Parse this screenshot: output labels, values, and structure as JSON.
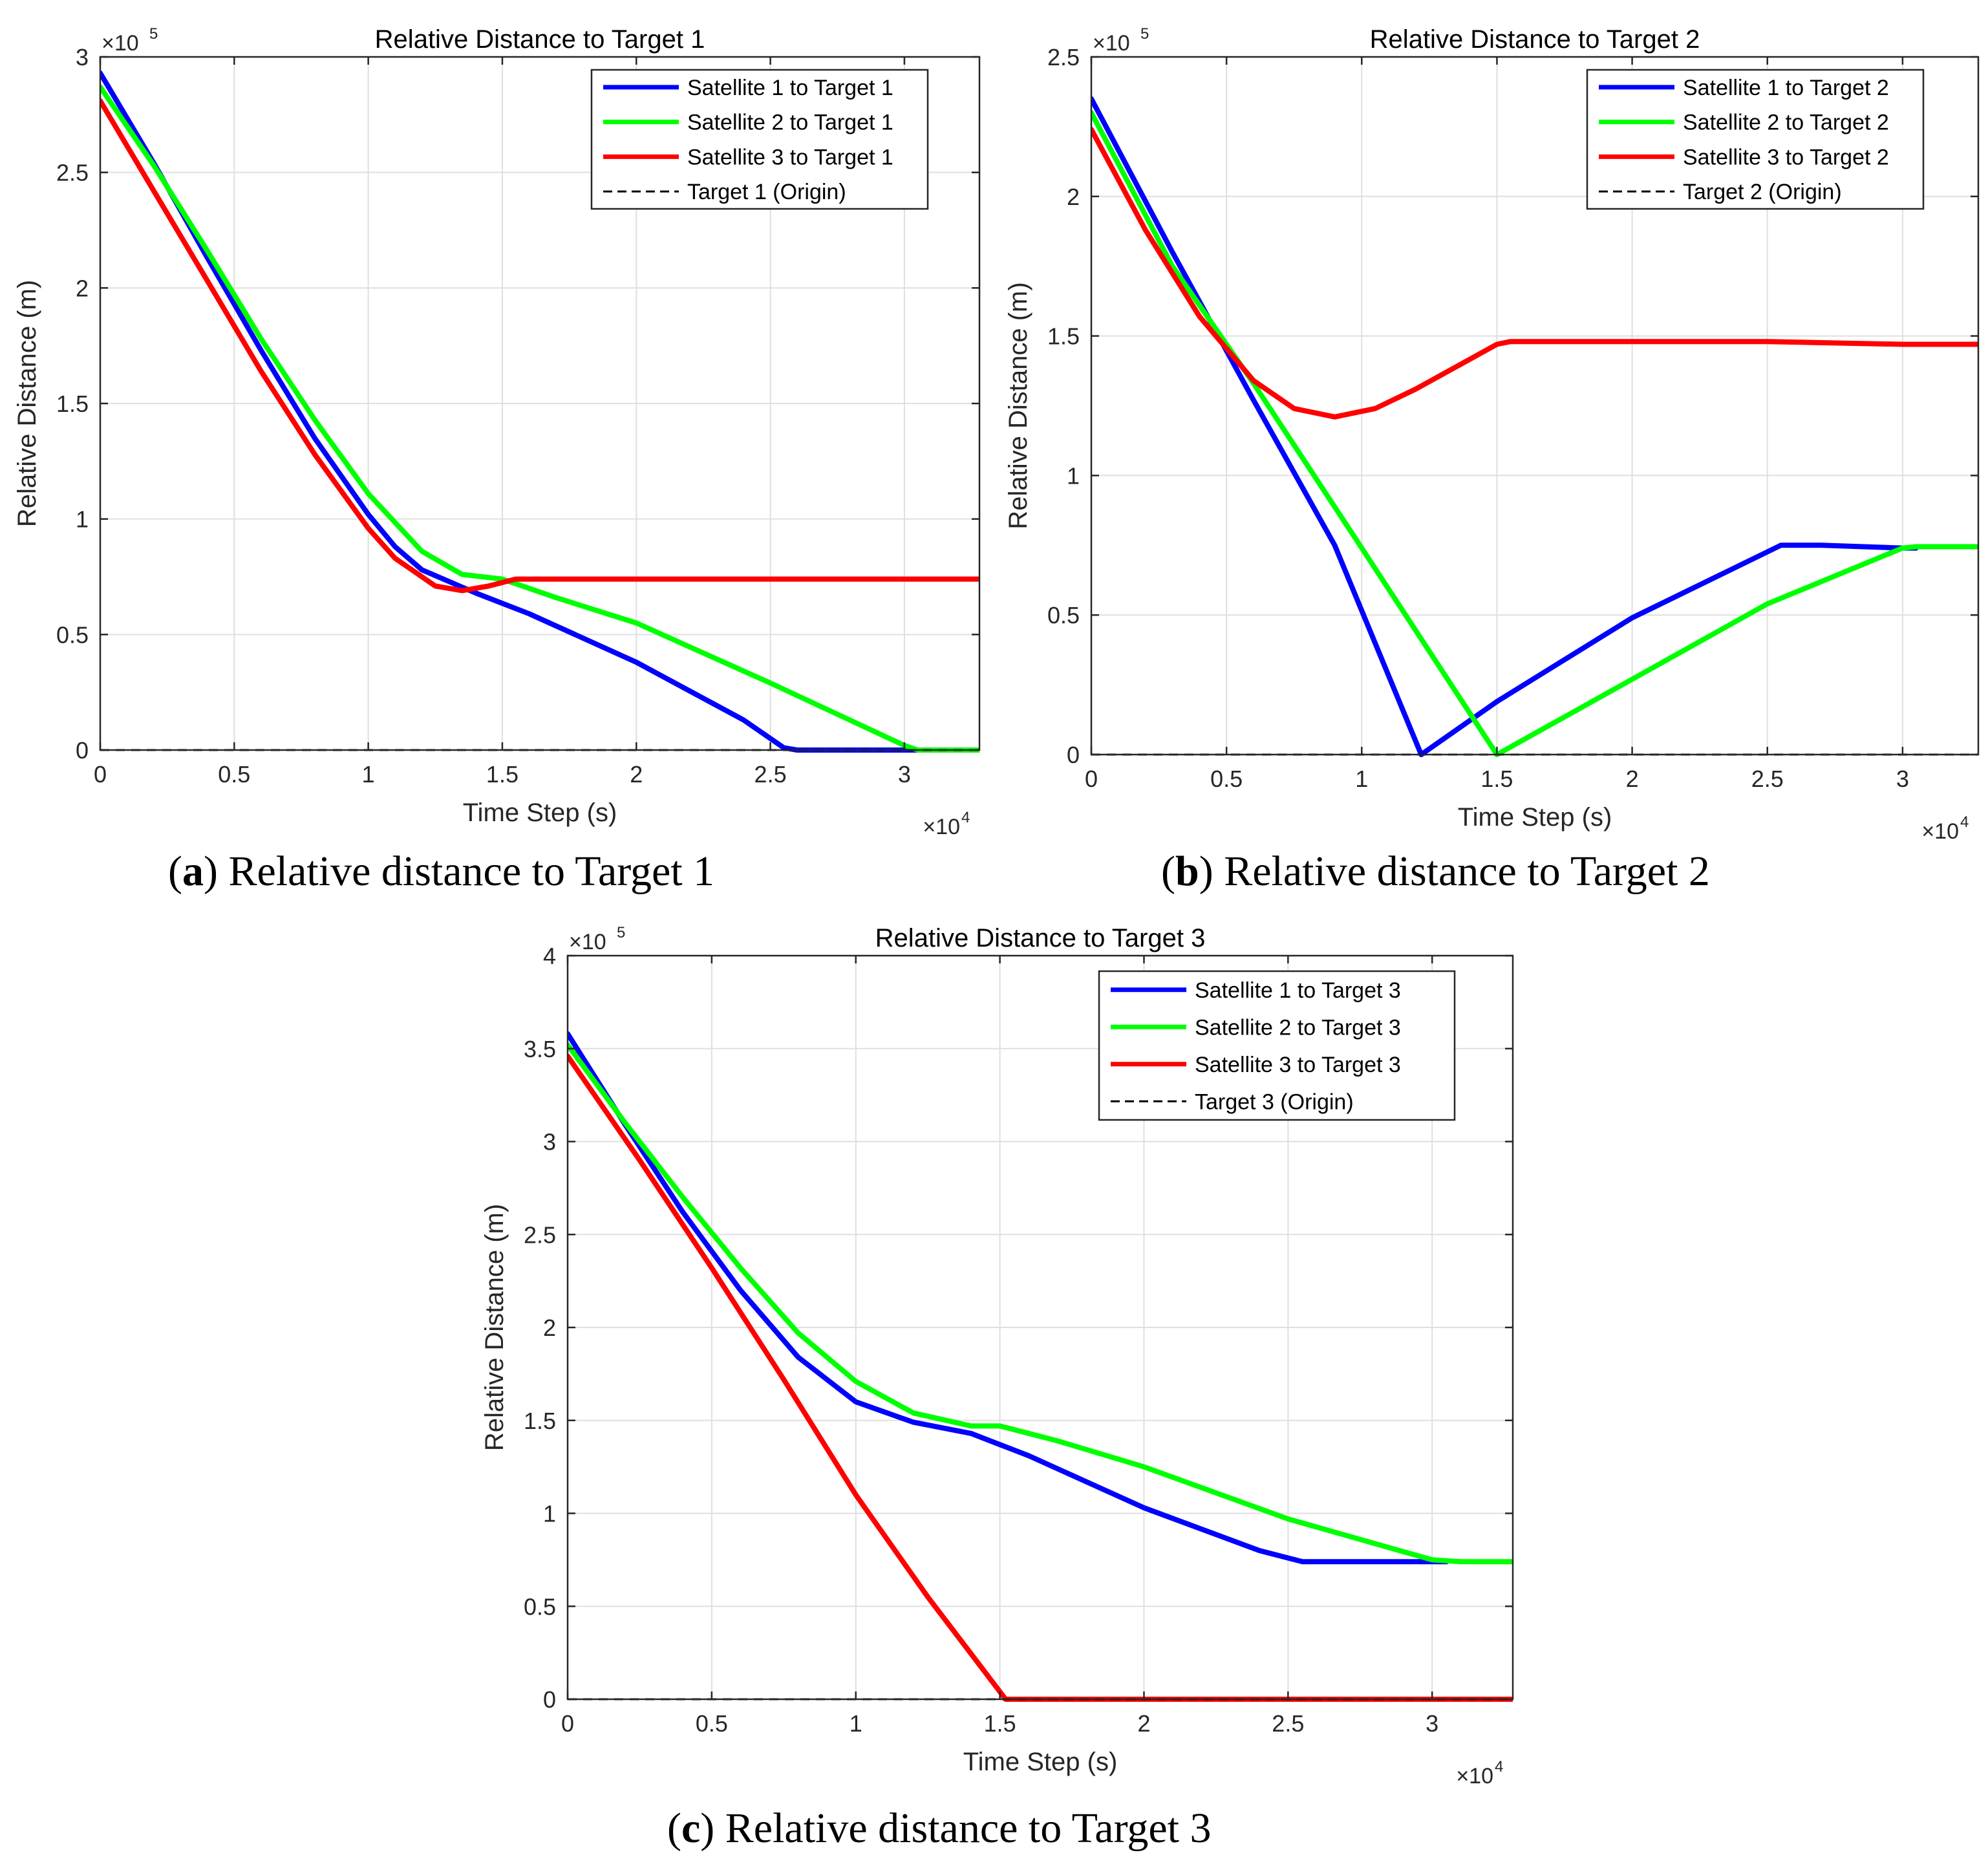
{
  "chart_data": [
    {
      "type": "line",
      "title": "Relative Distance to Target 1",
      "xlabel": "Time Step (s)",
      "ylabel": "Relative Distance (m)",
      "x_multiplier": "×10",
      "x_multiplier_exp": "4",
      "y_multiplier": "×10",
      "y_multiplier_exp": "5",
      "xlim": [
        0,
        3.28
      ],
      "ylim": [
        0,
        3
      ],
      "xticks": [
        0,
        0.5,
        1,
        1.5,
        2,
        2.5,
        3
      ],
      "xtick_labels": [
        "0",
        "0.5",
        "1",
        "1.5",
        "2",
        "2.5",
        "3"
      ],
      "yticks": [
        0,
        0.5,
        1,
        1.5,
        2,
        2.5,
        3
      ],
      "ytick_labels": [
        "0",
        "0.5",
        "1",
        "1.5",
        "2",
        "2.5",
        "3"
      ],
      "grid": true,
      "legend_position": "top-right",
      "caption": {
        "letter": "a",
        "text": " Relative distance to Target 1"
      },
      "series": [
        {
          "name": "Satellite 1 to Target 1",
          "color": "#0000ff",
          "style": "solid",
          "x": [
            0,
            0.2,
            0.4,
            0.6,
            0.8,
            1.0,
            1.1,
            1.2,
            1.4,
            1.6,
            2.0,
            2.4,
            2.55,
            2.6,
            3.28
          ],
          "y": [
            2.93,
            2.54,
            2.13,
            1.73,
            1.35,
            1.02,
            0.88,
            0.78,
            0.68,
            0.59,
            0.38,
            0.13,
            0.01,
            0,
            0
          ]
        },
        {
          "name": "Satellite 2 to Target 1",
          "color": "#00ff00",
          "style": "solid",
          "x": [
            0,
            0.2,
            0.4,
            0.6,
            0.8,
            1.0,
            1.2,
            1.35,
            1.5,
            1.7,
            2.0,
            2.5,
            3.0,
            3.05,
            3.28
          ],
          "y": [
            2.87,
            2.53,
            2.16,
            1.78,
            1.43,
            1.11,
            0.86,
            0.76,
            0.74,
            0.66,
            0.55,
            0.29,
            0.02,
            0,
            0
          ]
        },
        {
          "name": "Satellite 3 to Target 1",
          "color": "#ff0000",
          "style": "solid",
          "x": [
            0,
            0.2,
            0.4,
            0.6,
            0.8,
            1.0,
            1.1,
            1.25,
            1.35,
            1.45,
            1.55,
            1.7,
            2.0,
            2.5,
            3.0,
            3.28
          ],
          "y": [
            2.81,
            2.42,
            2.03,
            1.64,
            1.28,
            0.96,
            0.83,
            0.71,
            0.69,
            0.71,
            0.74,
            0.74,
            0.74,
            0.74,
            0.74,
            0.74
          ]
        },
        {
          "name": "Target 1 (Origin)",
          "color": "#000000",
          "style": "dashed",
          "x": [
            0,
            3.28
          ],
          "y": [
            0,
            0
          ]
        }
      ]
    },
    {
      "type": "line",
      "title": "Relative Distance to Target 2",
      "xlabel": "Time Step (s)",
      "ylabel": "Relative Distance (m)",
      "x_multiplier": "×10",
      "x_multiplier_exp": "4",
      "y_multiplier": "×10",
      "y_multiplier_exp": "5",
      "xlim": [
        0,
        3.28
      ],
      "ylim": [
        0,
        2.5
      ],
      "xticks": [
        0,
        0.5,
        1,
        1.5,
        2,
        2.5,
        3
      ],
      "xtick_labels": [
        "0",
        "0.5",
        "1",
        "1.5",
        "2",
        "2.5",
        "3"
      ],
      "yticks": [
        0,
        0.5,
        1,
        1.5,
        2,
        2.5
      ],
      "ytick_labels": [
        "0",
        "0.5",
        "1",
        "1.5",
        "2",
        "2.5"
      ],
      "grid": true,
      "legend_position": "top-right",
      "caption": {
        "letter": "b",
        "text": " Relative distance to Target 2"
      },
      "series": [
        {
          "name": "Satellite 1 to Target 2",
          "color": "#0000ff",
          "style": "solid",
          "x": [
            0,
            0.3,
            0.6,
            0.9,
            1.22,
            1.5,
            2.0,
            2.55,
            2.7,
            3.0,
            3.05
          ],
          "y": [
            2.35,
            1.8,
            1.27,
            0.75,
            0,
            0.19,
            0.49,
            0.75,
            0.75,
            0.74,
            0.74
          ]
        },
        {
          "name": "Satellite 2 to Target 2",
          "color": "#00ff00",
          "style": "solid",
          "x": [
            0,
            0.3,
            0.6,
            1.0,
            1.5,
            2.0,
            2.5,
            3.0,
            3.05,
            3.28
          ],
          "y": [
            2.3,
            1.75,
            1.33,
            0.74,
            0,
            0.27,
            0.54,
            0.74,
            0.745,
            0.745
          ]
        },
        {
          "name": "Satellite 3 to Target 2",
          "color": "#ff0000",
          "style": "solid",
          "x": [
            0,
            0.2,
            0.4,
            0.6,
            0.75,
            0.9,
            1.05,
            1.2,
            1.5,
            1.55,
            2.0,
            2.5,
            3.0,
            3.28
          ],
          "y": [
            2.24,
            1.88,
            1.57,
            1.34,
            1.24,
            1.21,
            1.24,
            1.31,
            1.47,
            1.48,
            1.48,
            1.48,
            1.47,
            1.47
          ]
        },
        {
          "name": "Target 2 (Origin)",
          "color": "#000000",
          "style": "dashed",
          "x": [
            0,
            3.28
          ],
          "y": [
            0,
            0
          ]
        }
      ]
    },
    {
      "type": "line",
      "title": "Relative Distance to Target 3",
      "xlabel": "Time Step (s)",
      "ylabel": "Relative Distance (m)",
      "x_multiplier": "×10",
      "x_multiplier_exp": "4",
      "y_multiplier": "×10",
      "y_multiplier_exp": "5",
      "xlim": [
        0,
        3.28
      ],
      "ylim": [
        0,
        4
      ],
      "xticks": [
        0,
        0.5,
        1,
        1.5,
        2,
        2.5,
        3
      ],
      "xtick_labels": [
        "0",
        "0.5",
        "1",
        "1.5",
        "2",
        "2.5",
        "3"
      ],
      "yticks": [
        0,
        0.5,
        1,
        1.5,
        2,
        2.5,
        3,
        3.5,
        4
      ],
      "ytick_labels": [
        "0",
        "0.5",
        "1",
        "1.5",
        "2",
        "2.5",
        "3",
        "3.5",
        "4"
      ],
      "grid": true,
      "legend_position": "top-right",
      "caption": {
        "letter": "c",
        "text": " Relative distance to Target 3"
      },
      "series": [
        {
          "name": "Satellite 1 to Target 3",
          "color": "#0000ff",
          "style": "solid",
          "x": [
            0,
            0.2,
            0.4,
            0.6,
            0.8,
            1.0,
            1.2,
            1.4,
            1.6,
            2.0,
            2.4,
            2.55,
            2.7,
            3.05
          ],
          "y": [
            3.58,
            3.09,
            2.62,
            2.2,
            1.84,
            1.6,
            1.49,
            1.43,
            1.31,
            1.03,
            0.8,
            0.74,
            0.74,
            0.74
          ]
        },
        {
          "name": "Satellite 2 to Target 3",
          "color": "#00ff00",
          "style": "solid",
          "x": [
            0,
            0.2,
            0.4,
            0.6,
            0.8,
            1.0,
            1.2,
            1.4,
            1.5,
            1.7,
            2.0,
            2.5,
            3.0,
            3.1,
            3.28
          ],
          "y": [
            3.52,
            3.1,
            2.7,
            2.32,
            1.97,
            1.71,
            1.54,
            1.47,
            1.47,
            1.39,
            1.25,
            0.97,
            0.75,
            0.74,
            0.74
          ]
        },
        {
          "name": "Satellite 3 to Target 3",
          "color": "#ff0000",
          "style": "solid",
          "x": [
            0,
            0.25,
            0.5,
            0.75,
            1.0,
            1.25,
            1.52,
            1.6,
            3.28
          ],
          "y": [
            3.46,
            2.9,
            2.32,
            1.72,
            1.1,
            0.55,
            0,
            0,
            0
          ]
        },
        {
          "name": "Target 3 (Origin)",
          "color": "#000000",
          "style": "dashed",
          "x": [
            0,
            3.28
          ],
          "y": [
            0,
            0
          ]
        }
      ]
    }
  ]
}
